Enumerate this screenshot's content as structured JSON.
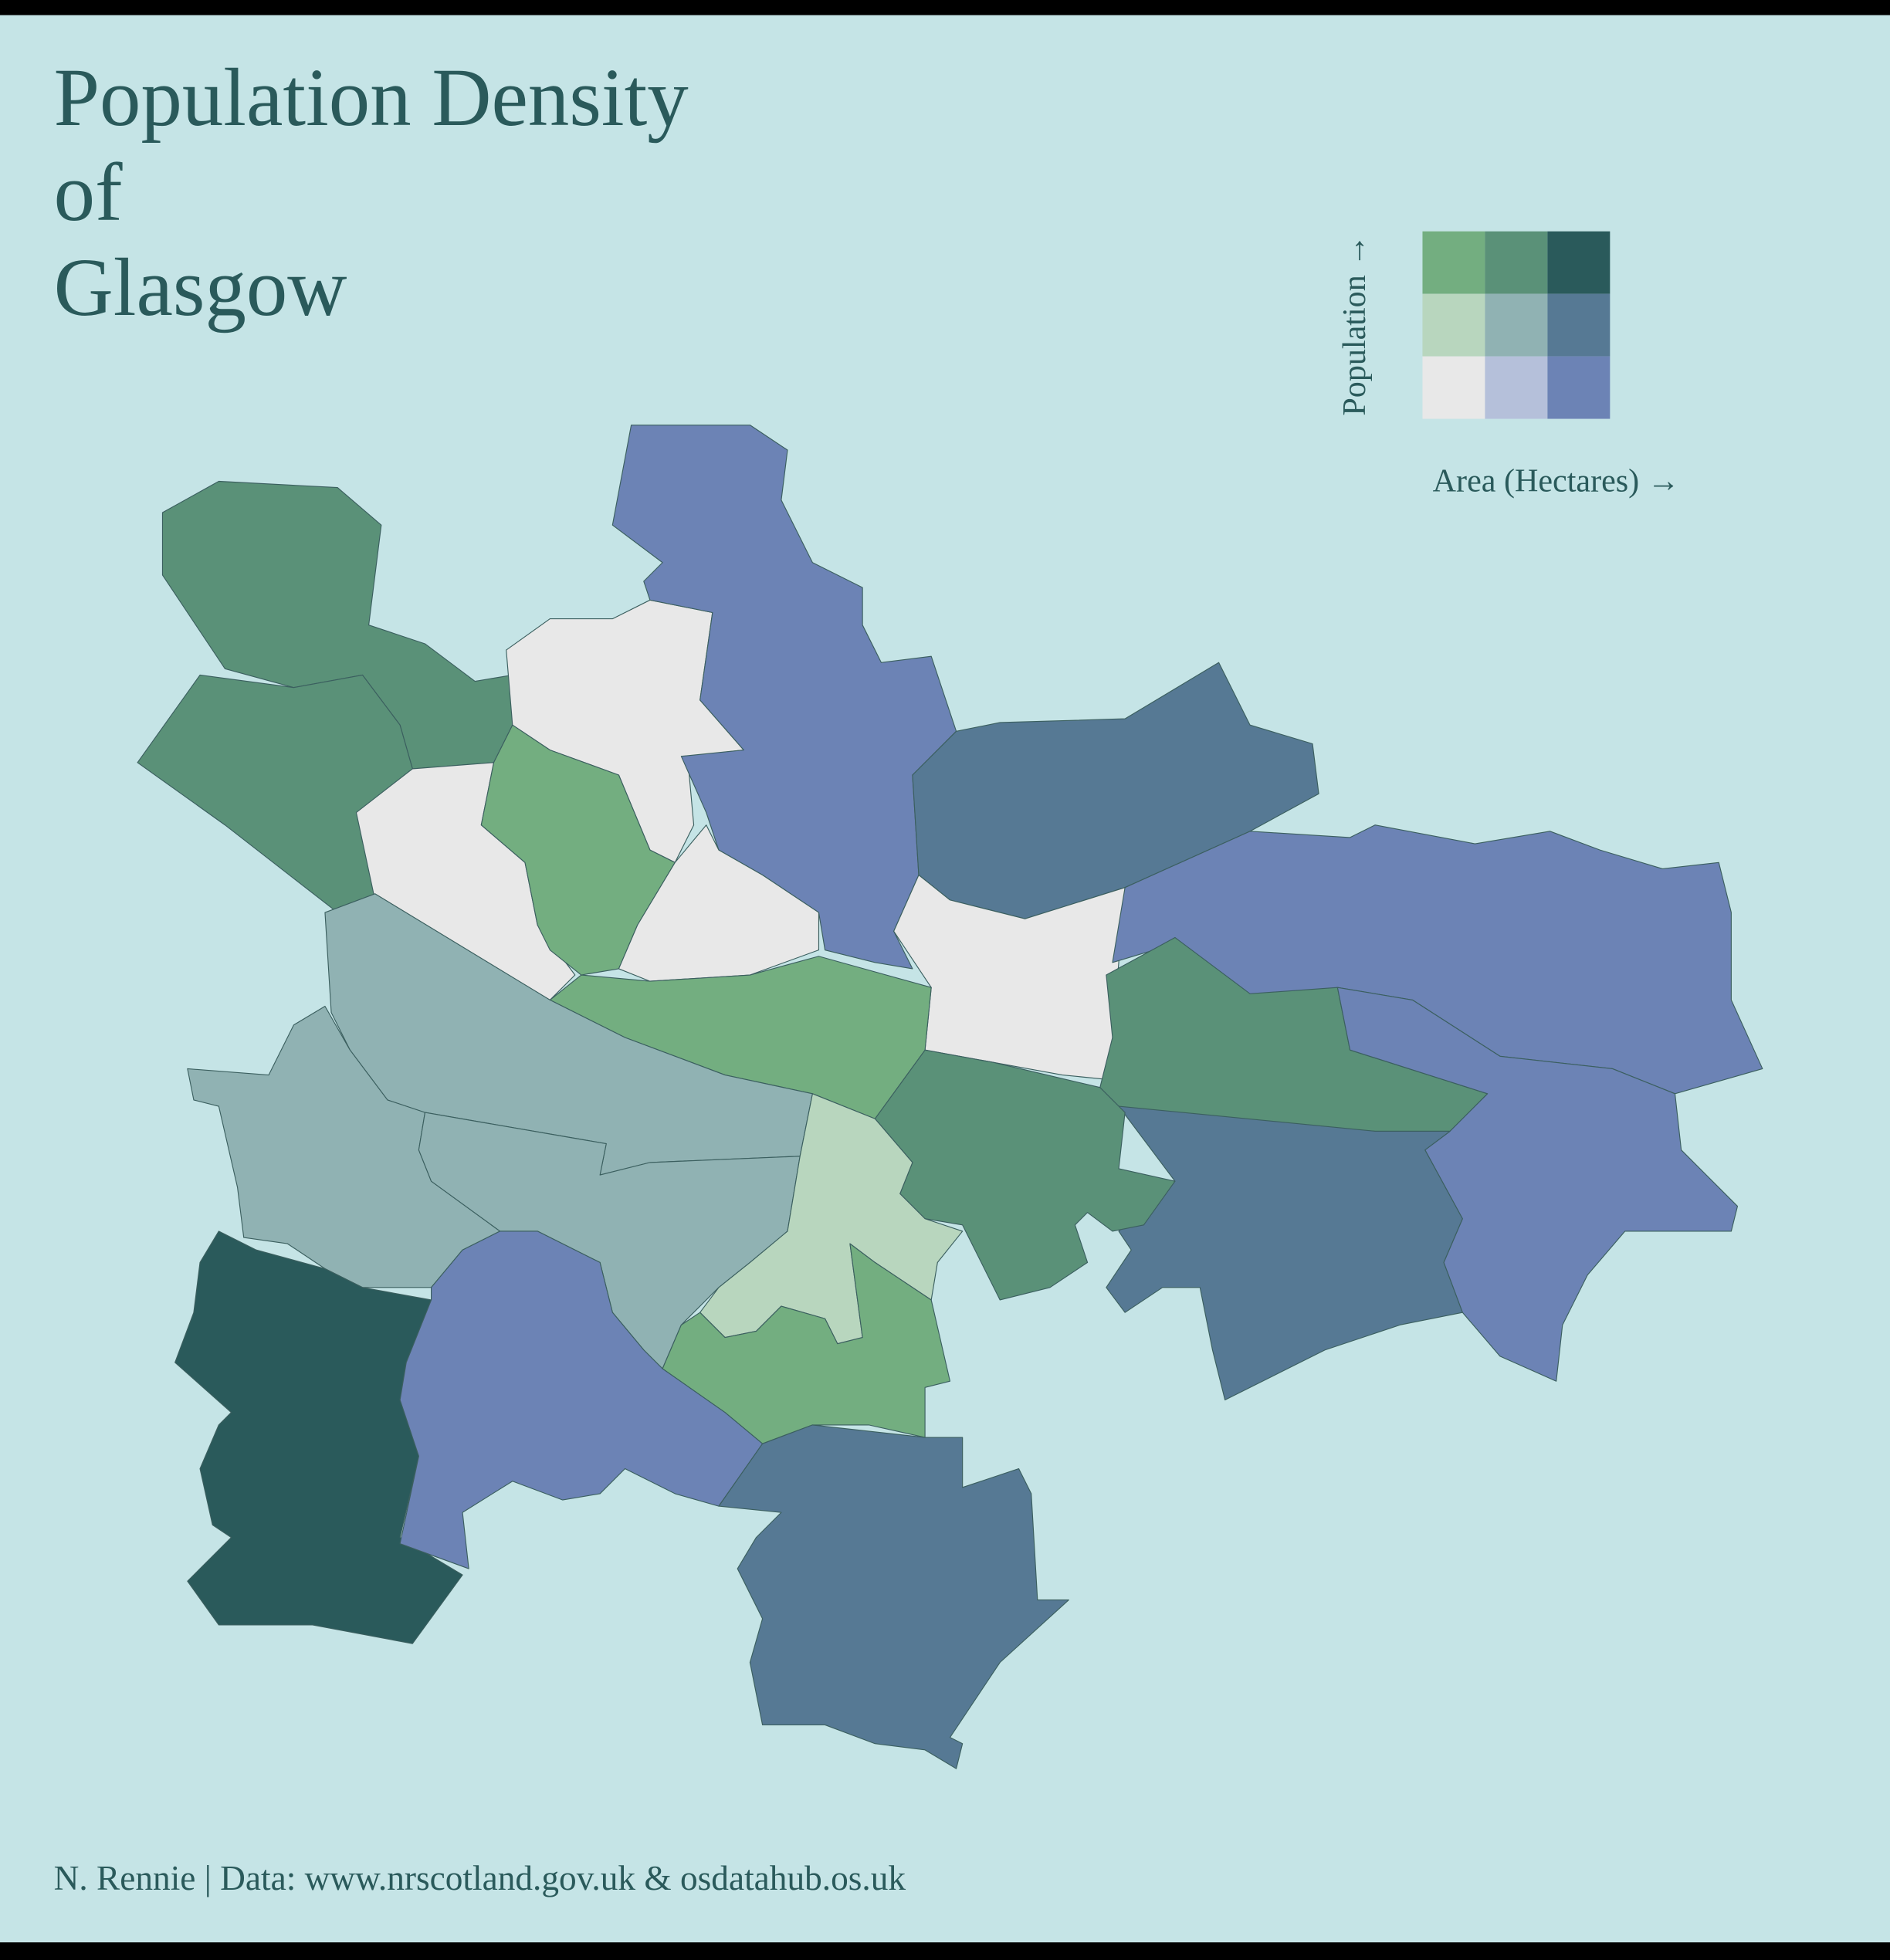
{
  "title_lines": [
    "Population Density",
    "of",
    "Glasgow"
  ],
  "legend": {
    "y_label": "Population →",
    "x_label": "Area (Hectares) →",
    "colors": [
      [
        "#73ae80",
        "#5a9178",
        "#2a5a5b"
      ],
      [
        "#b8d6be",
        "#90b2b3",
        "#567994"
      ],
      [
        "#e8e8e8",
        "#b5c0da",
        "#6c83b5"
      ]
    ]
  },
  "caption": "N. Rennie | Data: www.nrscotland.gov.uk & osdatahub.os.uk"
}
